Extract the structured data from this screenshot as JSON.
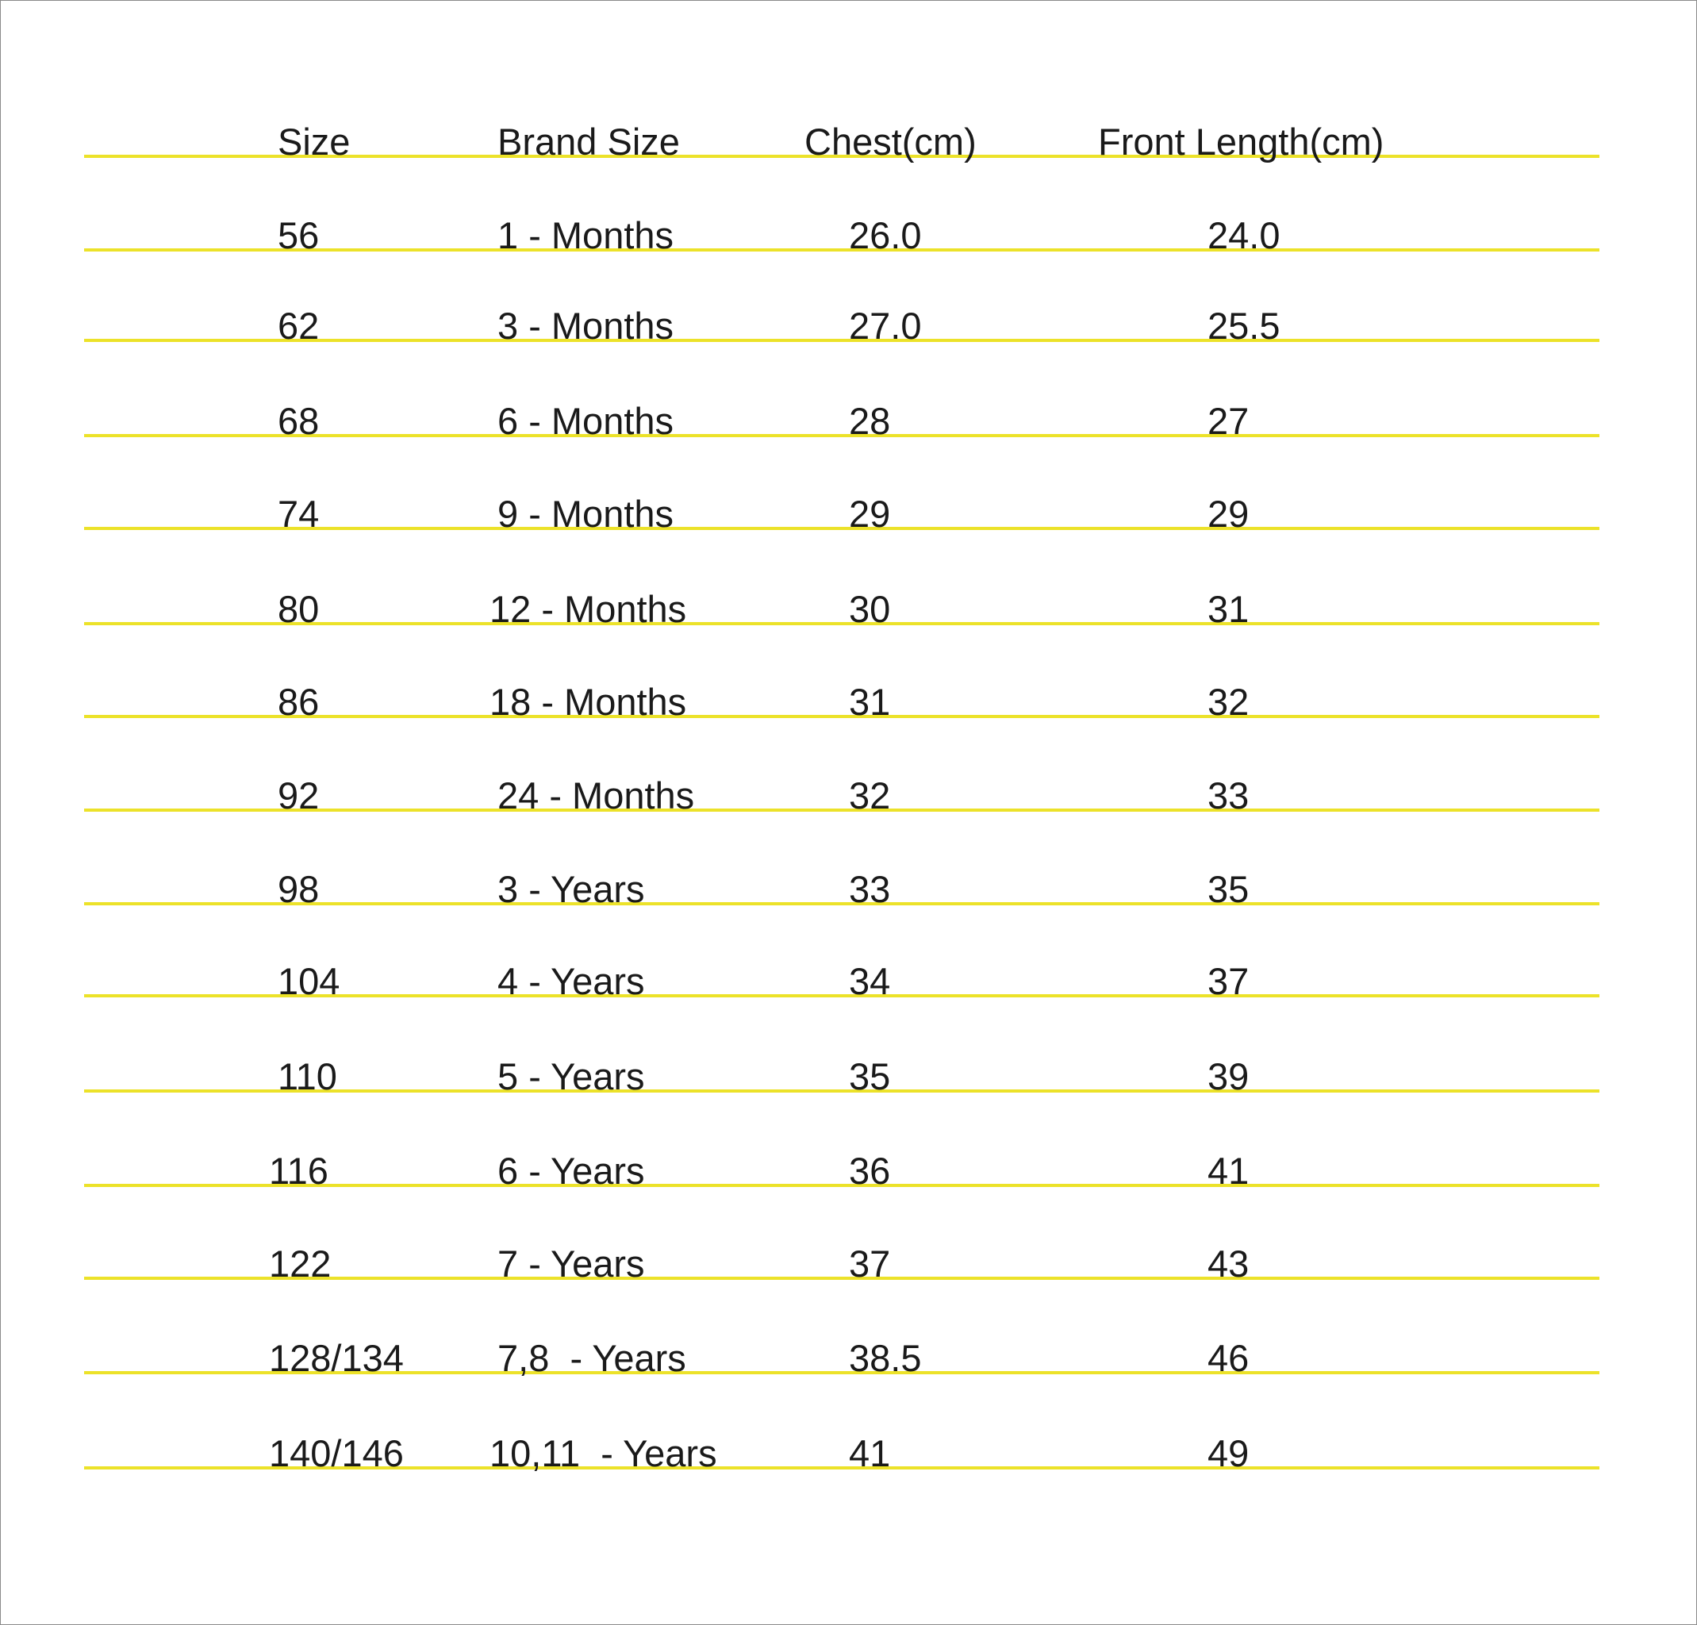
{
  "table": {
    "headers": [
      "Size",
      "Brand Size",
      "Chest(cm)",
      "Front Length(cm)"
    ],
    "rows": [
      [
        "56",
        "1 - Months",
        "26.0",
        "24.0"
      ],
      [
        "62",
        "3 - Months",
        "27.0",
        "25.5"
      ],
      [
        "68",
        "6 - Months",
        "28",
        "27"
      ],
      [
        "74",
        "9 - Months",
        "29",
        "29"
      ],
      [
        "80",
        "12 - Months",
        "30",
        "31"
      ],
      [
        "86",
        "18 - Months",
        "31",
        "32"
      ],
      [
        "92",
        "24 - Months",
        "32",
        "33"
      ],
      [
        "98",
        "3 - Years",
        "33",
        "35"
      ],
      [
        "104",
        "4 - Years",
        "34",
        "37"
      ],
      [
        "110",
        "5 - Years",
        "35",
        "39"
      ],
      [
        "116",
        "6 - Years",
        "36",
        "41"
      ],
      [
        "122",
        "7 - Years",
        "37",
        "43"
      ],
      [
        "128/134",
        "7,8  - Years",
        "38.5",
        "46"
      ],
      [
        "140/146",
        "10,11  - Years",
        "41",
        "49"
      ]
    ],
    "rule_color": "#ece229"
  }
}
